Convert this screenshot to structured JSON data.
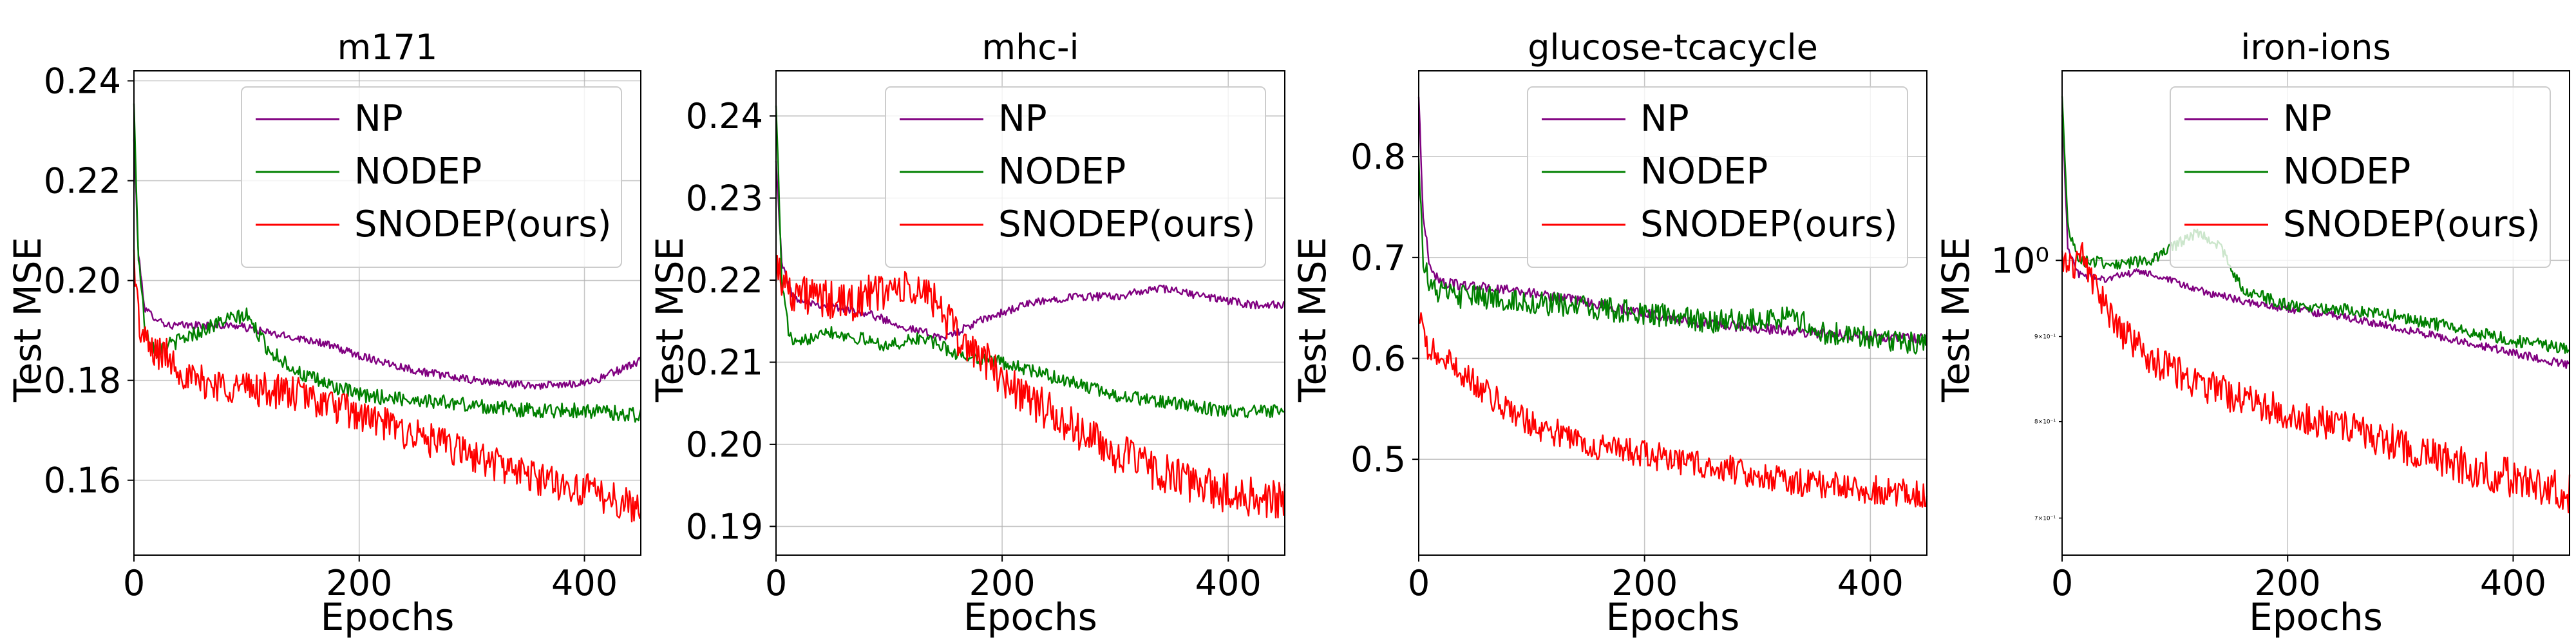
{
  "chart_data": [
    {
      "type": "line",
      "title": "m171",
      "xlabel": "Epochs",
      "ylabel": "Test MSE",
      "xlim": [
        0,
        450
      ],
      "ylim": [
        0.145,
        0.242
      ],
      "yscale": "linear",
      "xticks": [
        0,
        200,
        400
      ],
      "yticks": [
        0.16,
        0.18,
        0.2,
        0.22,
        0.24
      ],
      "ytick_labels": [
        "0.16",
        "0.18",
        "0.20",
        "0.22",
        "0.24"
      ],
      "grid": true,
      "legend": "top-right",
      "series": [
        {
          "name": "NP",
          "color": "#800080",
          "noise": 0.0008,
          "points": [
            [
              0,
              0.228
            ],
            [
              4,
              0.205
            ],
            [
              10,
              0.194
            ],
            [
              30,
              0.191
            ],
            [
              60,
              0.191
            ],
            [
              90,
              0.191
            ],
            [
              130,
              0.189
            ],
            [
              160,
              0.188
            ],
            [
              200,
              0.185
            ],
            [
              250,
              0.182
            ],
            [
              300,
              0.18
            ],
            [
              350,
              0.179
            ],
            [
              380,
              0.179
            ],
            [
              410,
              0.18
            ],
            [
              430,
              0.182
            ],
            [
              450,
              0.184
            ]
          ]
        },
        {
          "name": "NODEP",
          "color": "#008000",
          "noise": 0.0015,
          "points": [
            [
              0,
              0.235
            ],
            [
              4,
              0.205
            ],
            [
              10,
              0.19
            ],
            [
              20,
              0.186
            ],
            [
              40,
              0.188
            ],
            [
              60,
              0.19
            ],
            [
              80,
              0.192
            ],
            [
              100,
              0.193
            ],
            [
              120,
              0.186
            ],
            [
              150,
              0.181
            ],
            [
              200,
              0.177
            ],
            [
              260,
              0.176
            ],
            [
              300,
              0.175
            ],
            [
              350,
              0.174
            ],
            [
              400,
              0.174
            ],
            [
              450,
              0.173
            ]
          ]
        },
        {
          "name": "SNODEP(ours)",
          "color": "#ff0000",
          "noise": 0.0035,
          "points": [
            [
              0,
              0.205
            ],
            [
              5,
              0.19
            ],
            [
              15,
              0.186
            ],
            [
              30,
              0.185
            ],
            [
              50,
              0.18
            ],
            [
              80,
              0.179
            ],
            [
              120,
              0.178
            ],
            [
              150,
              0.177
            ],
            [
              200,
              0.173
            ],
            [
              250,
              0.169
            ],
            [
              300,
              0.165
            ],
            [
              350,
              0.161
            ],
            [
              400,
              0.158
            ],
            [
              430,
              0.156
            ],
            [
              450,
              0.154
            ]
          ]
        }
      ]
    },
    {
      "type": "line",
      "title": "mhc-i",
      "xlabel": "Epochs",
      "ylabel": "Test MSE",
      "xlim": [
        0,
        450
      ],
      "ylim": [
        0.1865,
        0.2455
      ],
      "yscale": "linear",
      "xticks": [
        0,
        200,
        400
      ],
      "yticks": [
        0.19,
        0.2,
        0.21,
        0.22,
        0.23,
        0.24
      ],
      "ytick_labels": [
        "0.19",
        "0.20",
        "0.21",
        "0.22",
        "0.23",
        "0.24"
      ],
      "grid": true,
      "legend": "top-right",
      "series": [
        {
          "name": "NP",
          "color": "#800080",
          "noise": 0.0005,
          "points": [
            [
              0,
              0.235
            ],
            [
              5,
              0.222
            ],
            [
              15,
              0.218
            ],
            [
              40,
              0.217
            ],
            [
              80,
              0.216
            ],
            [
              120,
              0.214
            ],
            [
              150,
              0.213
            ],
            [
              180,
              0.215
            ],
            [
              220,
              0.217
            ],
            [
              260,
              0.218
            ],
            [
              300,
              0.218
            ],
            [
              340,
              0.219
            ],
            [
              380,
              0.218
            ],
            [
              420,
              0.217
            ],
            [
              450,
              0.217
            ]
          ]
        },
        {
          "name": "NODEP",
          "color": "#008000",
          "noise": 0.0008,
          "points": [
            [
              0,
              0.242
            ],
            [
              5,
              0.22
            ],
            [
              12,
              0.213
            ],
            [
              20,
              0.212
            ],
            [
              40,
              0.214
            ],
            [
              70,
              0.213
            ],
            [
              100,
              0.212
            ],
            [
              130,
              0.213
            ],
            [
              160,
              0.211
            ],
            [
              200,
              0.21
            ],
            [
              250,
              0.208
            ],
            [
              300,
              0.206
            ],
            [
              350,
              0.205
            ],
            [
              400,
              0.204
            ],
            [
              450,
              0.204
            ]
          ]
        },
        {
          "name": "SNODEP(ours)",
          "color": "#ff0000",
          "noise": 0.0025,
          "points": [
            [
              0,
              0.222
            ],
            [
              10,
              0.219
            ],
            [
              30,
              0.218
            ],
            [
              60,
              0.217
            ],
            [
              100,
              0.219
            ],
            [
              140,
              0.218
            ],
            [
              160,
              0.213
            ],
            [
              180,
              0.211
            ],
            [
              200,
              0.208
            ],
            [
              250,
              0.203
            ],
            [
              300,
              0.199
            ],
            [
              350,
              0.196
            ],
            [
              400,
              0.194
            ],
            [
              450,
              0.193
            ]
          ]
        }
      ]
    },
    {
      "type": "line",
      "title": "glucose-tcacycle",
      "xlabel": "Epochs",
      "ylabel": "Test MSE",
      "xlim": [
        0,
        450
      ],
      "ylim": [
        0.405,
        0.885
      ],
      "yscale": "linear",
      "xticks": [
        0,
        200,
        400
      ],
      "yticks": [
        0.5,
        0.6,
        0.7,
        0.8
      ],
      "ytick_labels": [
        "0.5",
        "0.6",
        "0.7",
        "0.8"
      ],
      "grid": true,
      "legend": "top-right",
      "series": [
        {
          "name": "NP",
          "color": "#800080",
          "noise": 0.005,
          "points": [
            [
              0,
              0.86
            ],
            [
              4,
              0.74
            ],
            [
              10,
              0.69
            ],
            [
              20,
              0.675
            ],
            [
              60,
              0.67
            ],
            [
              100,
              0.665
            ],
            [
              150,
              0.655
            ],
            [
              200,
              0.645
            ],
            [
              250,
              0.635
            ],
            [
              300,
              0.63
            ],
            [
              350,
              0.625
            ],
            [
              400,
              0.622
            ],
            [
              450,
              0.62
            ]
          ]
        },
        {
          "name": "NODEP",
          "color": "#008000",
          "noise": 0.012,
          "points": [
            [
              0,
              0.8
            ],
            [
              4,
              0.7
            ],
            [
              10,
              0.67
            ],
            [
              30,
              0.662
            ],
            [
              60,
              0.66
            ],
            [
              100,
              0.655
            ],
            [
              150,
              0.65
            ],
            [
              200,
              0.645
            ],
            [
              260,
              0.635
            ],
            [
              300,
              0.64
            ],
            [
              330,
              0.64
            ],
            [
              360,
              0.625
            ],
            [
              400,
              0.62
            ],
            [
              450,
              0.615
            ]
          ]
        },
        {
          "name": "SNODEP(ours)",
          "color": "#ff0000",
          "noise": 0.014,
          "points": [
            [
              0,
              0.64
            ],
            [
              8,
              0.61
            ],
            [
              20,
              0.6
            ],
            [
              40,
              0.585
            ],
            [
              60,
              0.565
            ],
            [
              100,
              0.535
            ],
            [
              150,
              0.515
            ],
            [
              200,
              0.505
            ],
            [
              250,
              0.495
            ],
            [
              300,
              0.485
            ],
            [
              350,
              0.475
            ],
            [
              400,
              0.47
            ],
            [
              450,
              0.465
            ]
          ]
        }
      ]
    },
    {
      "type": "line",
      "title": "iron-ions",
      "xlabel": "Epochs",
      "ylabel": "Test MSE",
      "xlim": [
        0,
        450
      ],
      "ylim": [
        0.665,
        1.3
      ],
      "yscale": "log",
      "xticks": [
        0,
        200,
        400
      ],
      "yticks": [
        1.0
      ],
      "ytick_labels": [
        "10⁰"
      ],
      "minor_yticks": [
        0.7,
        0.8,
        0.9
      ],
      "minor_ytick_labels": [
        "7×10⁻¹",
        "8×10⁻¹",
        "9×10⁻¹"
      ],
      "grid": true,
      "legend": "top-right",
      "series": [
        {
          "name": "NP",
          "color": "#800080",
          "noise": 0.005,
          "points": [
            [
              0,
              1.22
            ],
            [
              5,
              1.02
            ],
            [
              15,
              0.98
            ],
            [
              40,
              0.975
            ],
            [
              70,
              0.985
            ],
            [
              90,
              0.975
            ],
            [
              120,
              0.96
            ],
            [
              160,
              0.945
            ],
            [
              200,
              0.935
            ],
            [
              250,
              0.925
            ],
            [
              300,
              0.91
            ],
            [
              350,
              0.895
            ],
            [
              400,
              0.88
            ],
            [
              450,
              0.865
            ]
          ]
        },
        {
          "name": "NODEP",
          "color": "#008000",
          "noise": 0.008,
          "points": [
            [
              0,
              1.25
            ],
            [
              5,
              1.05
            ],
            [
              15,
              1.0
            ],
            [
              50,
              0.995
            ],
            [
              80,
              1.0
            ],
            [
              100,
              1.02
            ],
            [
              120,
              1.04
            ],
            [
              140,
              1.02
            ],
            [
              160,
              0.96
            ],
            [
              200,
              0.94
            ],
            [
              250,
              0.935
            ],
            [
              300,
              0.925
            ],
            [
              350,
              0.91
            ],
            [
              400,
              0.895
            ],
            [
              450,
              0.885
            ]
          ]
        },
        {
          "name": "SNODEP(ours)",
          "color": "#ff0000",
          "noise": 0.02,
          "points": [
            [
              0,
              1.0
            ],
            [
              8,
              0.99
            ],
            [
              18,
              1.01
            ],
            [
              30,
              0.96
            ],
            [
              50,
              0.91
            ],
            [
              80,
              0.87
            ],
            [
              120,
              0.845
            ],
            [
              160,
              0.825
            ],
            [
              200,
              0.81
            ],
            [
              250,
              0.795
            ],
            [
              300,
              0.775
            ],
            [
              350,
              0.755
            ],
            [
              400,
              0.74
            ],
            [
              450,
              0.725
            ]
          ]
        }
      ]
    }
  ]
}
